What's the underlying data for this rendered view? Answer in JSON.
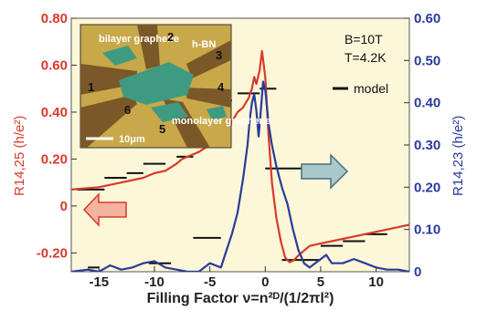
{
  "chart_data": {
    "type": "line",
    "title": "",
    "xlabel": "Filling Factor ν=n²ᴰ/(1/2πl²)",
    "ylabel_left": "R14,25 (h/e²)",
    "ylabel_right": "R14,23 (h/e²)",
    "xlim": [
      -17.5,
      13
    ],
    "ylim_left": [
      -0.28,
      0.8
    ],
    "ylim_right": [
      0,
      0.6
    ],
    "x_ticks": [
      "-15",
      "-10",
      "-5",
      "0",
      "5",
      "10"
    ],
    "y_ticks_left": [
      "0.80",
      "0.60",
      "0.40",
      "0.20",
      "0",
      "-0.20"
    ],
    "y_ticks_right": [
      "0.60",
      "0.50",
      "0.40",
      "0.30",
      "0.20",
      "0.10",
      "0"
    ],
    "legend": [
      "B=10T",
      "T=4.2K",
      "model"
    ],
    "colors": {
      "left_axis": "#d83a2a",
      "right_axis": "#2a3a9a",
      "model": "#111111",
      "background": "#fcf7d8"
    },
    "series": [
      {
        "name": "R14,25",
        "axis": "left",
        "x": [
          -17.5,
          -15,
          -13,
          -11,
          -10,
          -9,
          -8,
          -7.5,
          -6,
          -5,
          -4,
          -3.3,
          -3,
          -2.5,
          -2,
          -1.5,
          -1.2,
          -1,
          -0.8,
          -0.5,
          -0.3,
          0,
          0.3,
          0.6,
          1,
          1.4,
          1.8,
          2.2,
          2.6,
          3,
          3.5,
          4,
          5,
          6,
          7,
          8,
          9,
          10,
          11,
          12,
          13
        ],
        "y": [
          0.07,
          0.08,
          0.1,
          0.12,
          0.14,
          0.15,
          0.18,
          0.2,
          0.23,
          0.26,
          0.29,
          0.32,
          0.36,
          0.4,
          0.42,
          0.46,
          0.5,
          0.55,
          0.52,
          0.58,
          0.66,
          0.55,
          0.3,
          0.1,
          -0.05,
          -0.15,
          -0.22,
          -0.24,
          -0.23,
          -0.21,
          -0.19,
          -0.17,
          -0.16,
          -0.15,
          -0.14,
          -0.13,
          -0.12,
          -0.11,
          -0.1,
          -0.09,
          -0.08
        ]
      },
      {
        "name": "R14,23",
        "axis": "right",
        "x": [
          -17.5,
          -16,
          -15,
          -14,
          -13,
          -12,
          -11,
          -10,
          -9,
          -8,
          -7,
          -6,
          -5,
          -4,
          -3.5,
          -3,
          -2.5,
          -2,
          -1.6,
          -1.4,
          -1.2,
          -1,
          -0.8,
          -0.6,
          -0.4,
          -0.2,
          0,
          0.3,
          0.6,
          1,
          1.5,
          2,
          2.5,
          3,
          3.5,
          4,
          5,
          5.5,
          6,
          7,
          8,
          9,
          10,
          11,
          12,
          13
        ],
        "y": [
          0.0,
          0.005,
          0.0,
          0.015,
          0.005,
          0.01,
          0.02,
          0.025,
          0.01,
          0.005,
          0.0,
          0.0,
          0.02,
          0.01,
          0.05,
          0.09,
          0.14,
          0.22,
          0.3,
          0.36,
          0.4,
          0.42,
          0.38,
          0.32,
          0.38,
          0.45,
          0.43,
          0.35,
          0.3,
          0.25,
          0.2,
          0.16,
          0.1,
          0.05,
          0.02,
          0.01,
          0.03,
          0.04,
          0.02,
          0.02,
          0.03,
          0.02,
          0.01,
          0.005,
          0.005,
          0.0
        ]
      }
    ],
    "model_segments": [
      {
        "x": [
          -17,
          -14.5
        ],
        "y": 0.07,
        "axis": "left"
      },
      {
        "x": [
          -14.5,
          -12.5
        ],
        "y": 0.12,
        "axis": "left"
      },
      {
        "x": [
          -12.5,
          -11
        ],
        "y": 0.14,
        "axis": "left"
      },
      {
        "x": [
          -11,
          -9
        ],
        "y": 0.18,
        "axis": "left"
      },
      {
        "x": [
          -8,
          -6.5
        ],
        "y": 0.21,
        "axis": "left"
      },
      {
        "x": [
          -6.5,
          -3
        ],
        "y": 0.45,
        "axis": "left"
      },
      {
        "x": [
          -2.5,
          -0.5
        ],
        "y": 0.48,
        "axis": "left"
      },
      {
        "x": [
          -0.5,
          1
        ],
        "y": 0.5,
        "axis": "left"
      },
      {
        "x": [
          0,
          4
        ],
        "y": 0.16,
        "axis": "left"
      },
      {
        "x": [
          1.5,
          5
        ],
        "y": -0.23,
        "axis": "left"
      },
      {
        "x": [
          5,
          7
        ],
        "y": -0.17,
        "axis": "left"
      },
      {
        "x": [
          7,
          9
        ],
        "y": -0.15,
        "axis": "left"
      },
      {
        "x": [
          9,
          11
        ],
        "y": -0.12,
        "axis": "left"
      },
      {
        "x": [
          -6.5,
          -4
        ],
        "y": 0.08,
        "axis": "right"
      },
      {
        "x": [
          -10.5,
          -8.5
        ],
        "y": 0.02,
        "axis": "right"
      },
      {
        "x": [
          -16,
          -15
        ],
        "y": 0.01,
        "axis": "right"
      }
    ],
    "inset": {
      "labels": [
        "bilayer graphene",
        "h-BN",
        "monolayer graphene"
      ],
      "contact_numbers": [
        "1",
        "2",
        "3",
        "4",
        "5",
        "6"
      ],
      "scalebar": "10μm"
    }
  }
}
